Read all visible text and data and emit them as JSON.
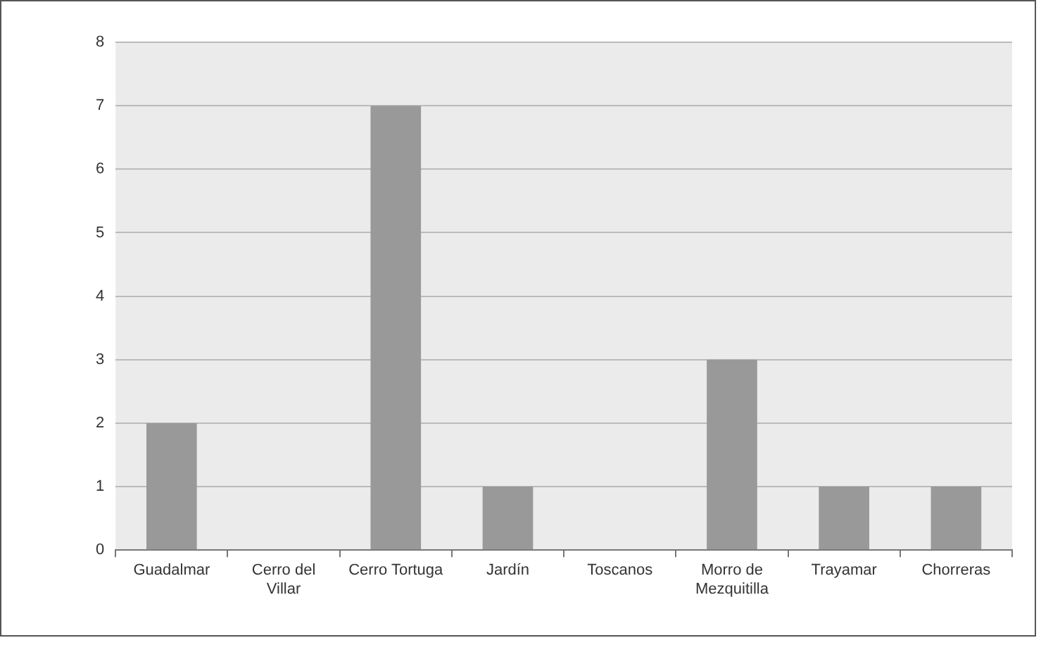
{
  "chart_data": {
    "type": "bar",
    "categories": [
      "Guadalmar",
      "Cerro del Villar",
      "Cerro Tortuga",
      "Jardín",
      "Toscanos",
      "Morro de Mezquitilla",
      "Trayamar",
      "Chorreras"
    ],
    "values": [
      2,
      0,
      7,
      1,
      0,
      3,
      1,
      1
    ],
    "color": "#999999",
    "ylim": [
      0,
      8
    ],
    "yticks": [
      0,
      1,
      2,
      3,
      4,
      5,
      6,
      7,
      8
    ],
    "grid": "y",
    "legend": false
  }
}
